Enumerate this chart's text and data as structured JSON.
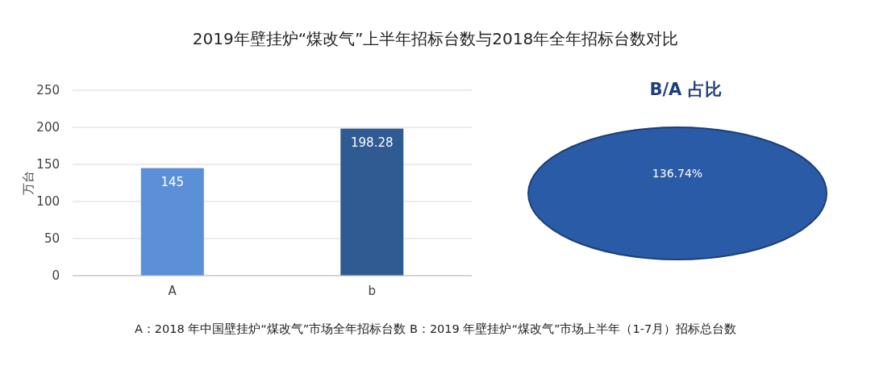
{
  "chart_data": [
    {
      "type": "bar",
      "title": "2019年壁挂炉“煤改气”上半年招标台数与2018年全年招标台数对比",
      "ylabel": "万台",
      "categories": [
        "A",
        "b"
      ],
      "values": [
        145,
        198.28
      ],
      "colors": [
        "#5b8fd8",
        "#2f5a92"
      ],
      "ylim": [
        0,
        250
      ],
      "yticks": [
        0,
        50,
        100,
        150,
        200,
        250
      ],
      "grid": "y",
      "data_labels": true,
      "annotations": [
        "A：2018 年中国壁挂炉“煤改气”市场全年招标台数    B：2019 年壁挂炉“煤改气”市场上半年（1-7月）招标总台数"
      ]
    },
    {
      "type": "pie",
      "title": "B/A 占比",
      "categories": [
        null
      ],
      "values": [
        136.74
      ],
      "colors": [
        "#2a5ba6"
      ],
      "value_labels": [
        "136.74%"
      ]
    }
  ]
}
